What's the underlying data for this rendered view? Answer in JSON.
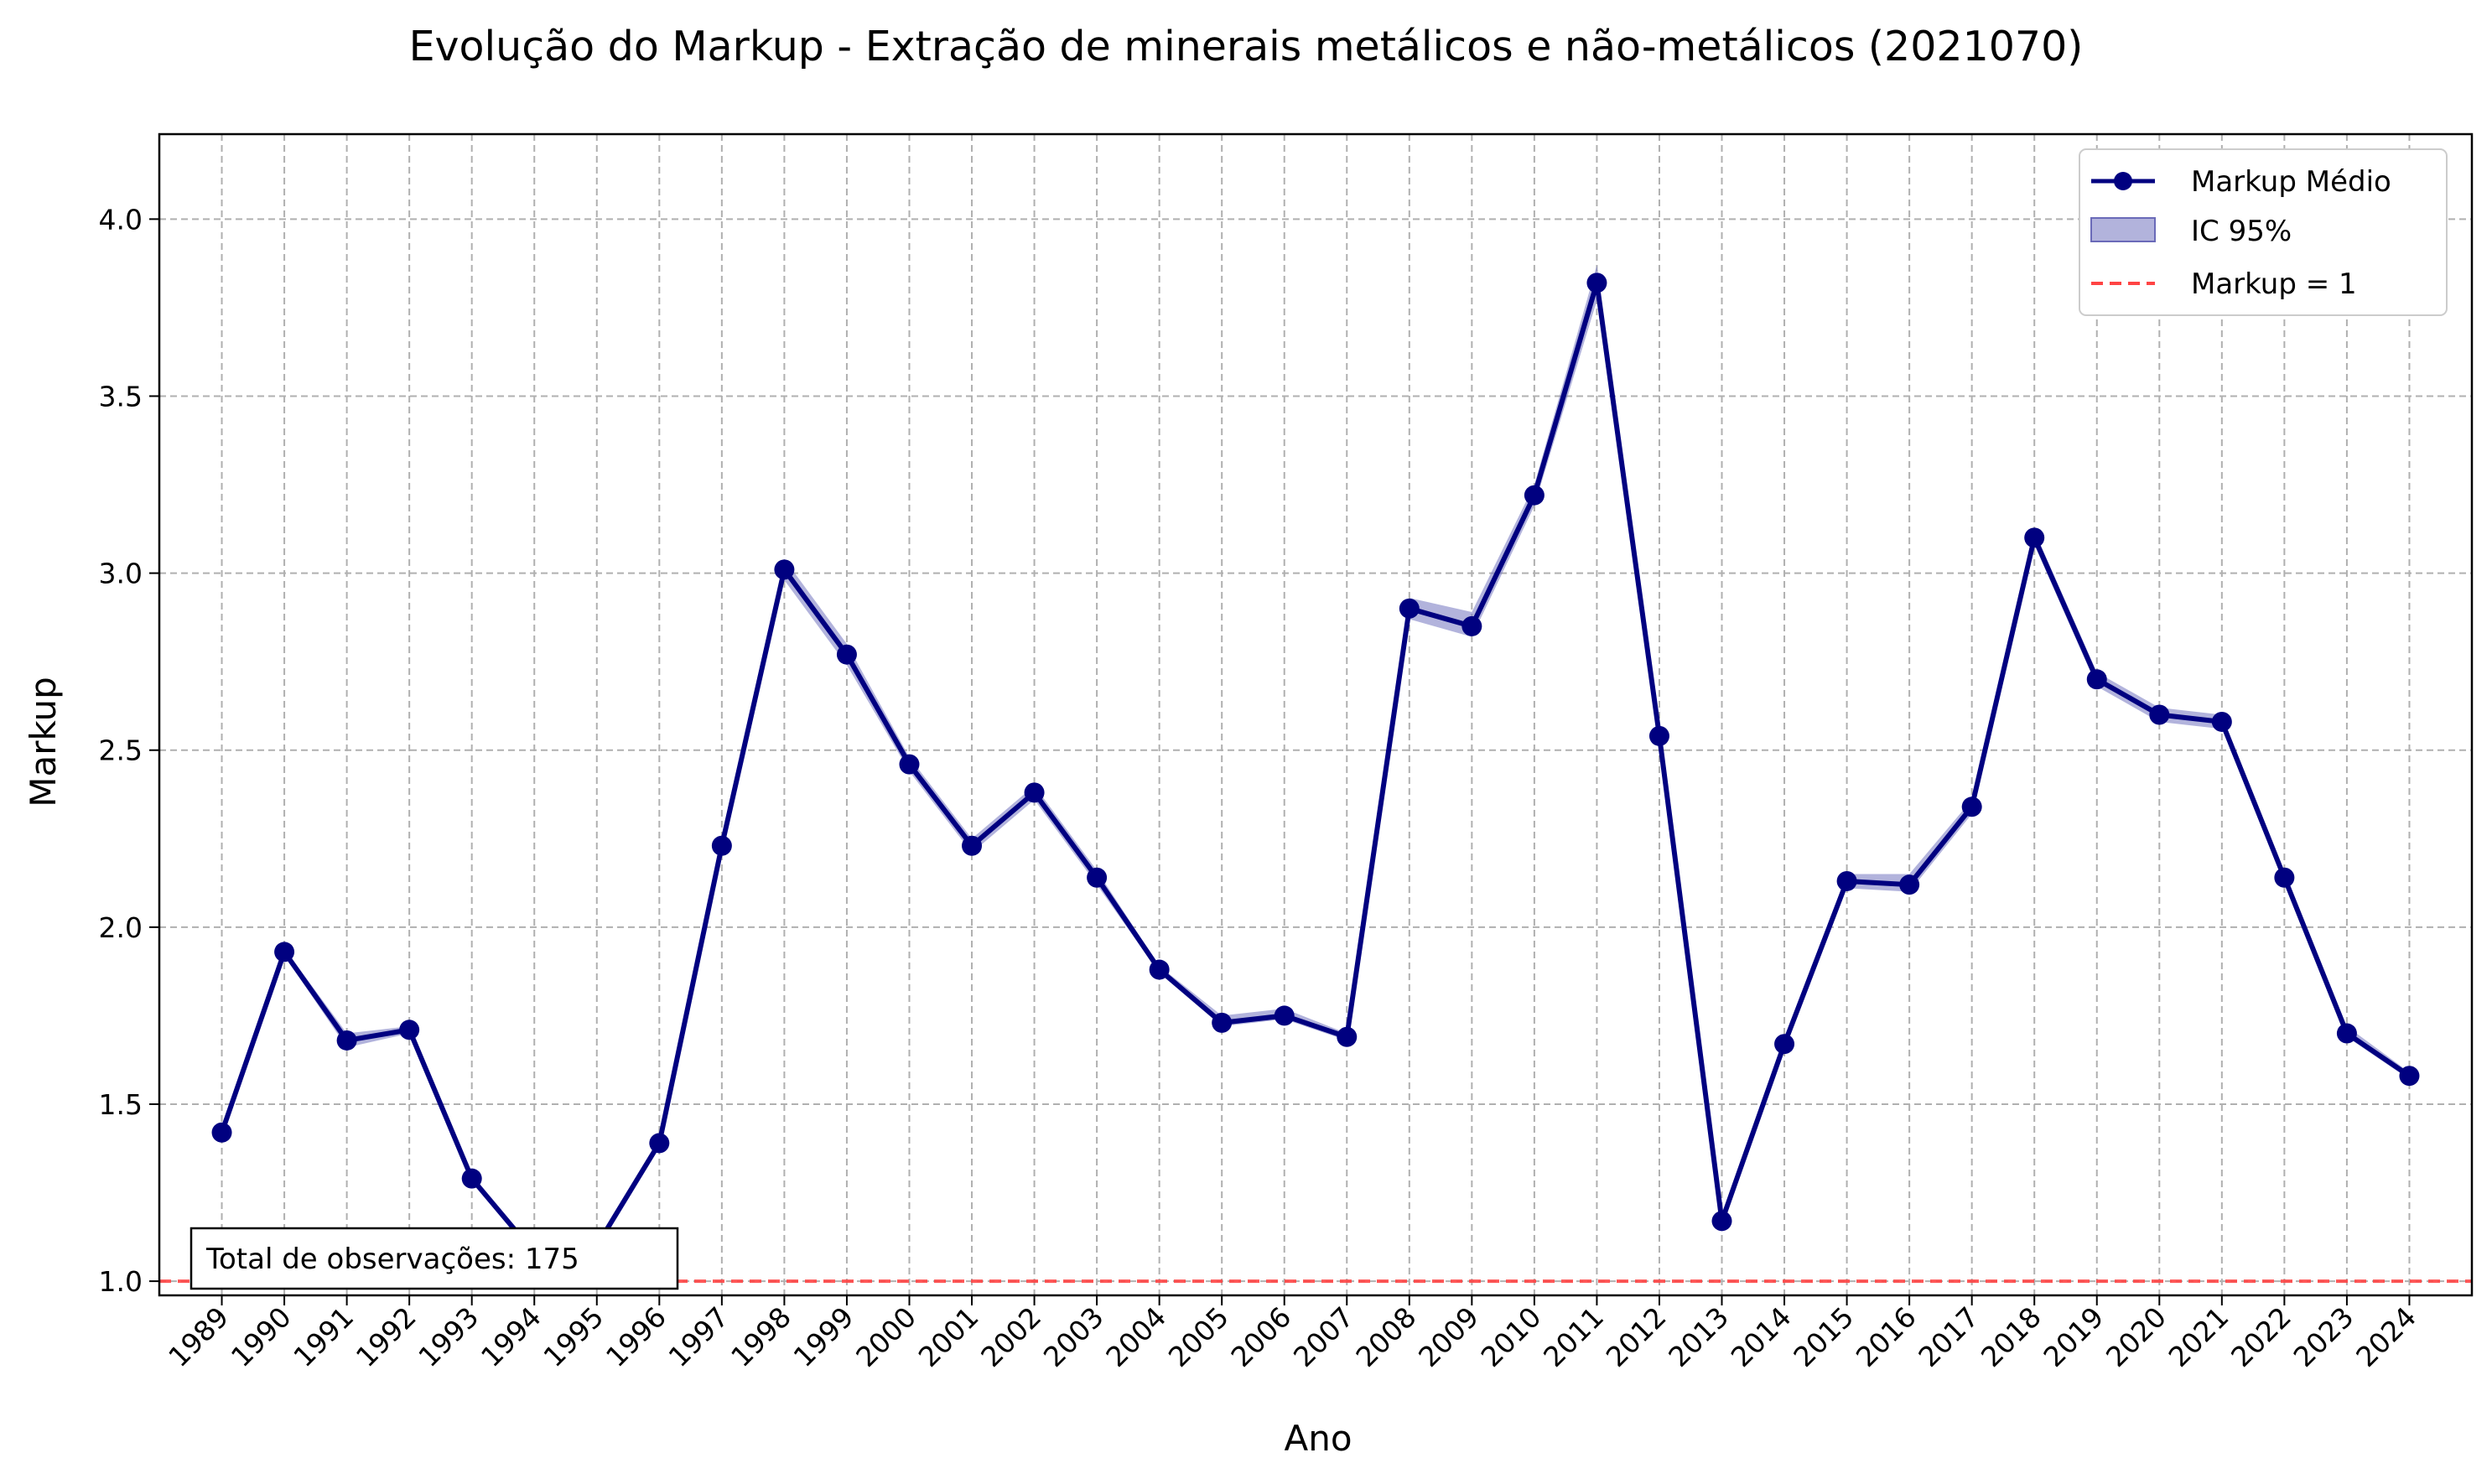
{
  "chart_data": {
    "type": "line",
    "title": "Evolução do Markup - Extração de minerais metálicos e não-metálicos (2021070)",
    "xlabel": "Ano",
    "ylabel": "Markup",
    "x": [
      1989,
      1990,
      1991,
      1992,
      1993,
      1994,
      1995,
      1996,
      1997,
      1998,
      1999,
      2000,
      2001,
      2002,
      2003,
      2004,
      2005,
      2006,
      2007,
      2008,
      2009,
      2010,
      2011,
      2012,
      2013,
      2014,
      2015,
      2016,
      2017,
      2018,
      2019,
      2020,
      2021,
      2022,
      2023,
      2024
    ],
    "yticks": [
      "1.0",
      "1.5",
      "2.0",
      "2.5",
      "3.0",
      "3.5",
      "4.0"
    ],
    "ylim": [
      0.96,
      4.24
    ],
    "grid": true,
    "legend_position": "top-right",
    "series": [
      {
        "name": "Markup Médio",
        "color": "#000080",
        "values": [
          1.42,
          1.93,
          1.68,
          1.71,
          1.29,
          1.08,
          1.1,
          1.39,
          2.23,
          3.01,
          2.77,
          2.46,
          2.23,
          2.38,
          2.14,
          1.88,
          1.73,
          1.75,
          1.69,
          2.9,
          2.85,
          3.22,
          3.82,
          2.54,
          1.17,
          1.67,
          2.13,
          2.12,
          2.34,
          3.1,
          2.7,
          2.6,
          2.58,
          2.14,
          1.7,
          1.58
        ]
      }
    ],
    "ci_band": {
      "name": "IC 95%",
      "color": "#7f80c4",
      "lower": [
        1.41,
        1.92,
        1.66,
        1.7,
        1.28,
        1.07,
        1.09,
        1.38,
        2.22,
        2.98,
        2.74,
        2.44,
        2.21,
        2.36,
        2.12,
        1.87,
        1.72,
        1.74,
        1.68,
        2.87,
        2.82,
        3.19,
        3.77,
        2.53,
        1.16,
        1.66,
        2.11,
        2.1,
        2.32,
        3.08,
        2.68,
        2.58,
        2.56,
        2.13,
        1.69,
        1.57
      ],
      "upper": [
        1.43,
        1.94,
        1.7,
        1.72,
        1.3,
        1.09,
        1.11,
        1.4,
        2.24,
        3.04,
        2.8,
        2.48,
        2.25,
        2.4,
        2.16,
        1.89,
        1.75,
        1.77,
        1.7,
        2.93,
        2.89,
        3.25,
        3.87,
        2.55,
        1.18,
        1.68,
        2.15,
        2.15,
        2.36,
        3.12,
        2.72,
        2.62,
        2.6,
        2.15,
        1.72,
        1.59
      ]
    },
    "reference_line": {
      "name": "Markup = 1",
      "value": 1.0,
      "color": "#ff4444"
    },
    "annotation": "Total de observações: 175"
  }
}
